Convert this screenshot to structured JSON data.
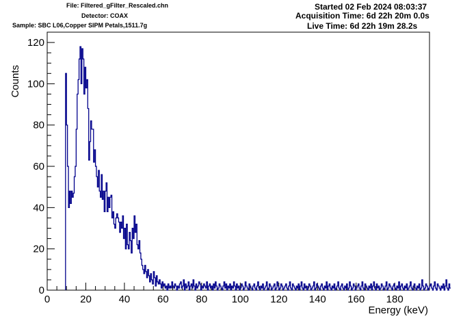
{
  "header": {
    "file": "File: Filtered_gFilter_Rescaled.chn",
    "detector": "Detector: COAX",
    "sample": "Sample: SBC L06,Copper SIPM Petals,1511.7g",
    "started": "Started 02 Feb 2024 08:03:37",
    "acquisition": "Acquisition Time: 6d 22h 20m 0.0s",
    "live": "Live Time: 6d 22h 19m 28.2s"
  },
  "chart_data": {
    "type": "line",
    "subtype": "step-histogram",
    "xlabel": "Energy (keV)",
    "ylabel": "Counts",
    "xlim": [
      0,
      198
    ],
    "ylim": [
      0,
      125
    ],
    "x_ticks": [
      0,
      20,
      40,
      60,
      80,
      100,
      120,
      140,
      160,
      180
    ],
    "y_ticks": [
      0,
      20,
      40,
      60,
      80,
      100,
      120
    ],
    "grid": false,
    "line_color": "#00008b",
    "bin_width": 0.5,
    "x_start": 9.5,
    "values": [
      105,
      80,
      60,
      40,
      48,
      42,
      48,
      45,
      47,
      55,
      60,
      78,
      95,
      102,
      112,
      118,
      100,
      117,
      112,
      95,
      108,
      98,
      102,
      88,
      63,
      72,
      82,
      78,
      78,
      62,
      68,
      60,
      55,
      50,
      58,
      48,
      45,
      56,
      44,
      48,
      38,
      48,
      52,
      38,
      45,
      40,
      45,
      46,
      35,
      38,
      32,
      30,
      35,
      37,
      35,
      33,
      28,
      33,
      30,
      36,
      25,
      30,
      20,
      32,
      22,
      20,
      28,
      24,
      18,
      30,
      25,
      36,
      28,
      32,
      22,
      20,
      24,
      18,
      15,
      12,
      10,
      8,
      12,
      9,
      6,
      10,
      7,
      4,
      8,
      5,
      3,
      9,
      6,
      2,
      7,
      4,
      3,
      5,
      3,
      1,
      4,
      2,
      3,
      1,
      2,
      0,
      3,
      1,
      2,
      1,
      4,
      2,
      1,
      3,
      2,
      0,
      2,
      1,
      3,
      4,
      1,
      2,
      5,
      0,
      3,
      1,
      2,
      4,
      0,
      2,
      3,
      1,
      5,
      2,
      0,
      3,
      1,
      2,
      4,
      3,
      0,
      2,
      1,
      3,
      2,
      1,
      4,
      0,
      2,
      3,
      1,
      2,
      0,
      3,
      1,
      4,
      2,
      0,
      1,
      3,
      2,
      1,
      0,
      2,
      4,
      1,
      3,
      0,
      2,
      1,
      3,
      0,
      2,
      1,
      4,
      2,
      0,
      3,
      1,
      2,
      0,
      1,
      3,
      2,
      0,
      1,
      4,
      2,
      1,
      0,
      3,
      2,
      1,
      0,
      2,
      3,
      1,
      0,
      2,
      4,
      1,
      0,
      2,
      1,
      3,
      0,
      1,
      2,
      4,
      0,
      1,
      3,
      2,
      0,
      1,
      2,
      3,
      0,
      1,
      4,
      2,
      0,
      1,
      3,
      2,
      0,
      1,
      2,
      3,
      1,
      0,
      2,
      4,
      1,
      0,
      3,
      2,
      1,
      0,
      2,
      1,
      3,
      0,
      2,
      4,
      1,
      0,
      3,
      1,
      2,
      0,
      1,
      3,
      2,
      0,
      1,
      2,
      4,
      0,
      1,
      3,
      2,
      1,
      0,
      2,
      3,
      1,
      0,
      2,
      1,
      4,
      0,
      2,
      3,
      1,
      0,
      2,
      1,
      3,
      0,
      1,
      2,
      4,
      1,
      0,
      2,
      3,
      1,
      0,
      2,
      1,
      3,
      0,
      1,
      4,
      2,
      0,
      1,
      3,
      2,
      0,
      1,
      2,
      3,
      1,
      0,
      2,
      4,
      1,
      0,
      3,
      2,
      1,
      0,
      2,
      1,
      3,
      0,
      2,
      4,
      1,
      0,
      3,
      1,
      2,
      0,
      1,
      3,
      2,
      0,
      1,
      2,
      4,
      0,
      1,
      3,
      2,
      1,
      0,
      2,
      3,
      1,
      0,
      2,
      1,
      4,
      0,
      2,
      3,
      1,
      0,
      2,
      1,
      3,
      0,
      1,
      2,
      4,
      1,
      0,
      2,
      3,
      1,
      0,
      2,
      1,
      3,
      0,
      1,
      5,
      2,
      0,
      1,
      3,
      2,
      0,
      1,
      2,
      3,
      1,
      0,
      2,
      4,
      1,
      0,
      3,
      2,
      1,
      0,
      2,
      1,
      3,
      0,
      2,
      5,
      1,
      0,
      3,
      1
    ]
  }
}
